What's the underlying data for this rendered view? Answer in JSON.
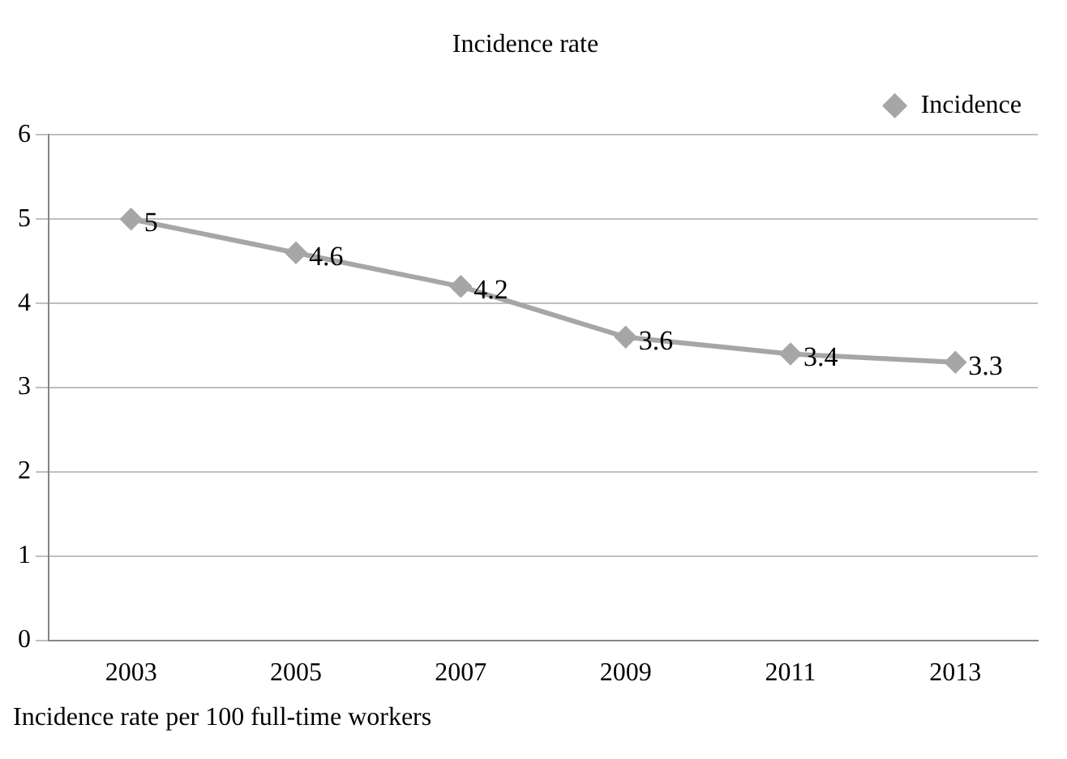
{
  "chart_data": {
    "type": "line",
    "title": "Incidence rate",
    "categories": [
      "2003",
      "2005",
      "2007",
      "2009",
      "2011",
      "2013"
    ],
    "series": [
      {
        "name": "Incidence",
        "color": "#a6a6a6",
        "values": [
          5,
          4.6,
          4.2,
          3.6,
          3.4,
          3.3
        ]
      }
    ],
    "ylim": [
      0,
      6
    ],
    "yticks": [
      0,
      1,
      2,
      3,
      4,
      5,
      6
    ],
    "grid": "y",
    "legend": "top right",
    "marker": "diamond",
    "line_style": "solid",
    "data_labels": true,
    "annotations": [
      "Incidence rate per 100 full-time workers"
    ]
  }
}
